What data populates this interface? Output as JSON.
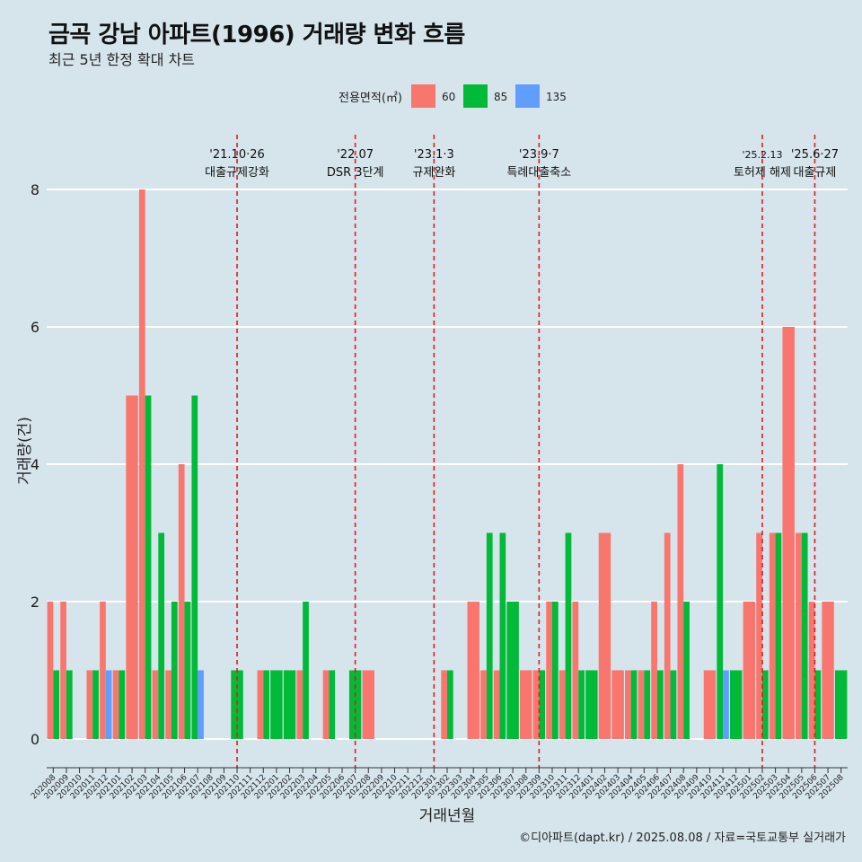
{
  "title": "금곡 강남 아파트(1996) 거래량 변화 흐름",
  "subtitle": "최근 5년 한정 확대 차트",
  "caption": "©디아파트(dapt.kr) / 2025.08.08 / 자료=국토교통부 실거래가",
  "colors": {
    "background": "#d6e4ec",
    "grid": "#ffffff",
    "event_line": "#e41a1c"
  },
  "chart_data": {
    "type": "bar",
    "title": "금곡 강남 아파트(1996) 거래량 변화 흐름",
    "xlabel": "거래년월",
    "ylabel": "거래량(건)",
    "ylim": [
      0,
      8
    ],
    "yticks": [
      0,
      2,
      4,
      6,
      8
    ],
    "grid": true,
    "legend": {
      "title": "전용면적(㎡)",
      "position": "top",
      "entries": [
        {
          "label": "60",
          "color": "#f8766d"
        },
        {
          "label": "85",
          "color": "#00ba38"
        },
        {
          "label": "135",
          "color": "#619cff"
        }
      ]
    },
    "categories": [
      "202008",
      "202009",
      "202010",
      "202011",
      "202012",
      "202101",
      "202102",
      "202103",
      "202104",
      "202105",
      "202106",
      "202107",
      "202108",
      "202109",
      "202110",
      "202111",
      "202112",
      "202201",
      "202202",
      "202203",
      "202204",
      "202205",
      "202206",
      "202207",
      "202208",
      "202209",
      "202210",
      "202211",
      "202212",
      "202301",
      "202302",
      "202303",
      "202304",
      "202305",
      "202306",
      "202307",
      "202308",
      "202309",
      "202310",
      "202311",
      "202312",
      "202401",
      "202402",
      "202403",
      "202404",
      "202405",
      "202406",
      "202407",
      "202408",
      "202409",
      "202410",
      "202411",
      "202412",
      "202501",
      "202502",
      "202503",
      "202504",
      "202505",
      "202506",
      "202507",
      "202508"
    ],
    "series": [
      {
        "name": "60",
        "color": "#f8766d",
        "values": [
          2,
          2,
          0,
          1,
          2,
          1,
          5,
          8,
          1,
          1,
          4,
          0,
          0,
          0,
          0,
          0,
          1,
          0,
          0,
          1,
          0,
          1,
          0,
          0,
          1,
          0,
          0,
          0,
          0,
          0,
          1,
          0,
          2,
          1,
          1,
          0,
          1,
          1,
          2,
          1,
          2,
          0,
          3,
          1,
          1,
          1,
          2,
          3,
          4,
          0,
          1,
          0,
          0,
          2,
          3,
          3,
          6,
          3,
          2,
          2,
          0
        ]
      },
      {
        "name": "85",
        "color": "#00ba38",
        "values": [
          1,
          1,
          0,
          1,
          0,
          1,
          0,
          5,
          3,
          2,
          2,
          5,
          0,
          0,
          1,
          0,
          1,
          1,
          1,
          2,
          0,
          1,
          0,
          1,
          0,
          0,
          0,
          0,
          0,
          0,
          1,
          0,
          0,
          3,
          3,
          2,
          0,
          1,
          2,
          3,
          1,
          1,
          0,
          0,
          1,
          1,
          1,
          1,
          2,
          0,
          0,
          4,
          1,
          0,
          1,
          3,
          0,
          3,
          1,
          0,
          1
        ]
      },
      {
        "name": "135",
        "color": "#619cff",
        "values": [
          0,
          0,
          0,
          0,
          1,
          0,
          0,
          0,
          0,
          0,
          0,
          1,
          0,
          0,
          0,
          0,
          0,
          0,
          0,
          0,
          0,
          0,
          0,
          0,
          0,
          0,
          0,
          0,
          0,
          0,
          0,
          0,
          0,
          0,
          0,
          0,
          0,
          0,
          0,
          0,
          0,
          0,
          0,
          0,
          0,
          0,
          0,
          0,
          0,
          0,
          0,
          1,
          0,
          0,
          0,
          0,
          0,
          0,
          0,
          0,
          0
        ]
      }
    ],
    "events": [
      {
        "date": "202110",
        "label_top": "'21.10·26",
        "label_bottom": "대출규제강화"
      },
      {
        "date": "202207",
        "label_top": "'22.07",
        "label_bottom": "DSR 3단계"
      },
      {
        "date": "202301",
        "label_top": "'23.1·3",
        "label_bottom": "규제완화"
      },
      {
        "date": "202309",
        "label_top": "'23.9·7",
        "label_bottom": "특례대출축소"
      },
      {
        "date": "202502",
        "label_top": "'25.2.13",
        "label_bottom": "토허제 해제"
      },
      {
        "date": "202506",
        "label_top": "'25.6·27",
        "label_bottom": "대출규제"
      }
    ]
  }
}
